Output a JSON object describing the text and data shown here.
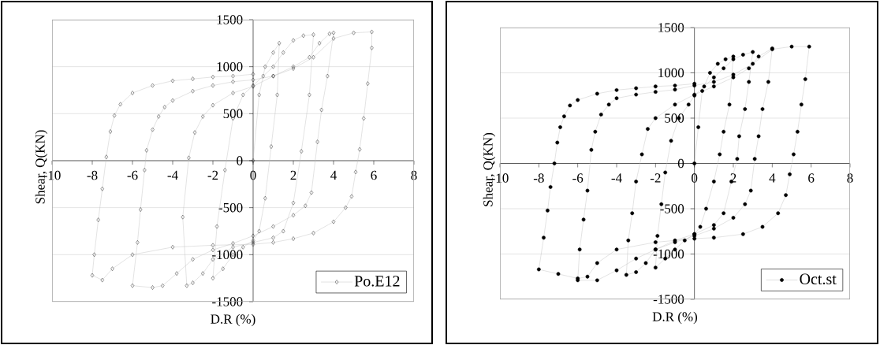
{
  "chart_data": [
    {
      "type": "line",
      "xlabel": "D.R (%)",
      "ylabel": "Shear, Q(KN)",
      "xlim": [
        -10,
        8
      ],
      "ylim": [
        -1500,
        1500
      ],
      "xticks": [
        -10,
        -8,
        -6,
        -4,
        -2,
        0,
        2,
        4,
        6,
        8
      ],
      "yticks": [
        -1500,
        -1000,
        -500,
        0,
        500,
        1000,
        1500
      ],
      "grid": "y",
      "legend": "bottom right",
      "marker": "diamond",
      "series": [
        {
          "name": "Po.E12",
          "color": "#000000",
          "x": [
            0,
            0.3,
            0.6,
            1,
            1.3,
            1.2,
            0.9,
            0.6,
            0.3,
            0,
            -0.5,
            -1,
            -1.5,
            -2,
            -1.8,
            -1.4,
            -1,
            -0.5,
            0,
            0.5,
            1,
            1.5,
            2,
            2.5,
            3,
            2.8,
            2.4,
            2,
            1.5,
            1,
            0,
            -1,
            -2,
            -2.5,
            -3,
            -3.3,
            -3.5,
            -3.2,
            -2.9,
            -2.5,
            -2,
            -1,
            0,
            1,
            2,
            2.8,
            3.3,
            3.8,
            4,
            3.7,
            3.4,
            3.2,
            2.9,
            2.6,
            2,
            1,
            0,
            -1,
            -2,
            -3,
            -3.8,
            -4.5,
            -5,
            -6,
            -5.75,
            -5.6,
            -5.4,
            -5.3,
            -5,
            -4.7,
            -4.4,
            -4,
            -3,
            -2,
            -1,
            0,
            1,
            2,
            3,
            4,
            5,
            5.9,
            5.9,
            5.7,
            5.5,
            5.3,
            5.1,
            4.9,
            4.6,
            4,
            3,
            2,
            1,
            0,
            -2,
            -4,
            -6,
            -7,
            -7.5,
            -8,
            -7.9,
            -7.7,
            -7.5,
            -7.3,
            -7.1,
            -6.9,
            -6.6,
            -6,
            -5,
            -4,
            -3,
            -2,
            -1,
            0
          ],
          "values": [
            0,
            700,
            1000,
            1150,
            1250,
            700,
            150,
            -400,
            -750,
            -850,
            -920,
            -1000,
            -1150,
            -1250,
            -700,
            -100,
            450,
            700,
            800,
            900,
            1000,
            1150,
            1280,
            1330,
            1340,
            700,
            100,
            -450,
            -750,
            -820,
            -870,
            -920,
            -1050,
            -1200,
            -1300,
            -1330,
            -600,
            30,
            300,
            470,
            590,
            720,
            790,
            900,
            1000,
            1100,
            1250,
            1350,
            1360,
            900,
            540,
            200,
            -340,
            -480,
            -580,
            -700,
            -800,
            -880,
            -950,
            -1050,
            -1200,
            -1330,
            -1350,
            -1330,
            -870,
            -520,
            -100,
            110,
            330,
            470,
            570,
            640,
            740,
            800,
            840,
            860,
            900,
            980,
            1100,
            1300,
            1360,
            1370,
            1200,
            820,
            450,
            120,
            -120,
            -380,
            -500,
            -650,
            -770,
            -830,
            -870,
            -890,
            -900,
            -920,
            -1000,
            -1150,
            -1270,
            -1220,
            -1000,
            -630,
            -300,
            40,
            310,
            480,
            600,
            720,
            800,
            850,
            870,
            890,
            900,
            920
          ]
        }
      ]
    },
    {
      "type": "line",
      "xlabel": "D.R (%)",
      "ylabel": "Shear, Q(KN)",
      "xlim": [
        -10,
        8
      ],
      "ylim": [
        -1500,
        1500
      ],
      "xticks": [
        -10,
        -8,
        -6,
        -4,
        -2,
        0,
        2,
        4,
        6,
        8
      ],
      "yticks": [
        -1500,
        -1000,
        -500,
        0,
        500,
        1000,
        1500
      ],
      "grid": "y",
      "legend": "bottom right",
      "marker": "circle",
      "series": [
        {
          "name": "Oct.st",
          "color": "#000000",
          "x": [
            0,
            0.2,
            0.4,
            0.8,
            1.2,
            1.6,
            2,
            1.8,
            1.5,
            1.3,
            1,
            0.6,
            0.3,
            0,
            -0.5,
            -1,
            -1.5,
            -2,
            -1.9,
            -1.7,
            -1.5,
            -1.2,
            -0.8,
            -0.3,
            0,
            0.5,
            1,
            1.5,
            2,
            2.5,
            3,
            2.8,
            2.6,
            2.3,
            2.2,
            1.9,
            1.5,
            1,
            0,
            -1,
            -2,
            -2.5,
            -3,
            -3.5,
            -3.4,
            -3.2,
            -3,
            -2.7,
            -2.4,
            -2,
            -1,
            0,
            1,
            2,
            2.8,
            3.3,
            4,
            3.8,
            3.5,
            3.3,
            3.1,
            2.9,
            2.6,
            2,
            1,
            0,
            -1,
            -2,
            -3,
            -4,
            -5,
            -6,
            -5.9,
            -5.7,
            -5.5,
            -5.3,
            -5.1,
            -4.8,
            -4.4,
            -4,
            -3,
            -2,
            -1,
            0,
            1,
            2,
            3,
            4,
            5,
            5.9,
            5.7,
            5.5,
            5.3,
            5.1,
            4.9,
            4.7,
            4.3,
            3.5,
            2.5,
            1,
            0,
            -2,
            -4,
            -5,
            -5.5,
            -6,
            -7,
            -8,
            -7.75,
            -7.55,
            -7.4,
            -7.2,
            -7.05,
            -6.9,
            -6.7,
            -6.4,
            -6,
            -5,
            -4,
            -3,
            -2,
            -1,
            0
          ],
          "values": [
            0,
            400,
            800,
            1000,
            1100,
            1150,
            1180,
            650,
            350,
            100,
            -200,
            -500,
            -700,
            -780,
            -850,
            -950,
            -1050,
            -1150,
            -800,
            -450,
            -100,
            250,
            500,
            650,
            750,
            850,
            950,
            1050,
            1150,
            1200,
            1230,
            900,
            600,
            300,
            50,
            -200,
            -550,
            -680,
            -780,
            -850,
            -950,
            -1100,
            -1200,
            -1230,
            -850,
            -550,
            -200,
            100,
            380,
            500,
            650,
            760,
            850,
            950,
            1050,
            1180,
            1270,
            900,
            600,
            300,
            50,
            -300,
            -450,
            -600,
            -720,
            -800,
            -870,
            -950,
            -1050,
            -1180,
            -1290,
            -1290,
            -950,
            -620,
            -300,
            150,
            350,
            540,
            650,
            720,
            760,
            790,
            815,
            860,
            900,
            980,
            1100,
            1260,
            1290,
            1290,
            930,
            650,
            350,
            100,
            -120,
            -350,
            -550,
            -700,
            -780,
            -820,
            -830,
            -870,
            -950,
            -1100,
            -1250,
            -1270,
            -1220,
            -1170,
            -820,
            -520,
            -260,
            0,
            230,
            400,
            520,
            640,
            700,
            770,
            810,
            830,
            850,
            860,
            880
          ]
        }
      ]
    }
  ]
}
